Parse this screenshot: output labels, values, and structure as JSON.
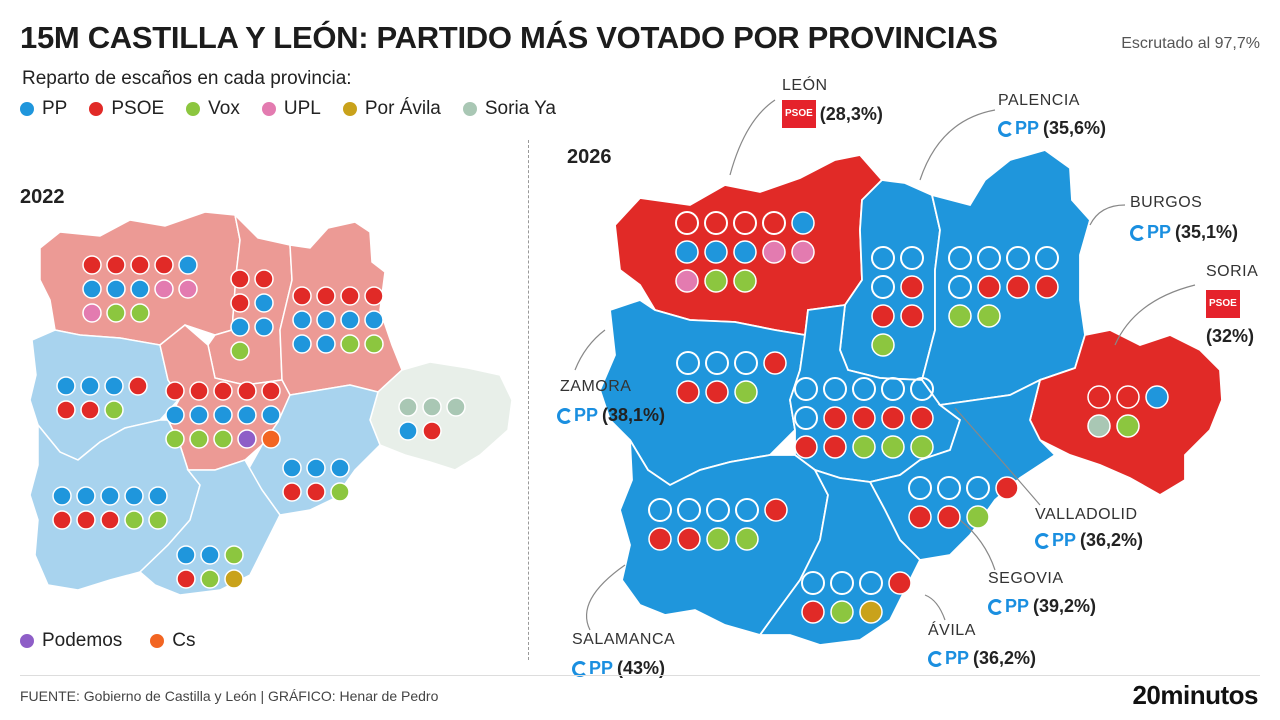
{
  "header": {
    "title": "15M CASTILLA Y LEÓN: PARTIDO MÁS VOTADO POR PROVINCIAS",
    "counted": "Escrutado al 97,7%",
    "subtitle": "Reparto de escaños en cada provincia:"
  },
  "legend": [
    {
      "label": "PP",
      "color": "#1f96dc"
    },
    {
      "label": "PSOE",
      "color": "#e12a27"
    },
    {
      "label": "Vox",
      "color": "#8cc63f"
    },
    {
      "label": "UPL",
      "color": "#e37bb0"
    },
    {
      "label": "Por Ávila",
      "color": "#c9a21b"
    },
    {
      "label": "Soria Ya",
      "color": "#a9c7b4"
    }
  ],
  "legend_extra": [
    {
      "label": "Podemos",
      "color": "#8e5ec7"
    },
    {
      "label": "Cs",
      "color": "#f26522"
    }
  ],
  "years": {
    "left": "2022",
    "right": "2026"
  },
  "colors": {
    "pp": "#1f96dc",
    "psoe": "#e12a27",
    "pp_light": "#a8d3ee",
    "psoe_light": "#ec9a95",
    "soria_light": "#e8efe9"
  },
  "results_2026": [
    {
      "province": "LEÓN",
      "party": "PSOE",
      "pct": "(28,3%)"
    },
    {
      "province": "PALENCIA",
      "party": "PP",
      "pct": "(35,6%)"
    },
    {
      "province": "BURGOS",
      "party": "PP",
      "pct": "(35,1%)"
    },
    {
      "province": "SORIA",
      "party": "PSOE",
      "pct": "(32%)"
    },
    {
      "province": "ZAMORA",
      "party": "PP",
      "pct": "(38,1%)"
    },
    {
      "province": "VALLADOLID",
      "party": "PP",
      "pct": "(36,2%)"
    },
    {
      "province": "SEGOVIA",
      "party": "PP",
      "pct": "(39,2%)"
    },
    {
      "province": "ÁVILA",
      "party": "PP",
      "pct": "(36,2%)"
    },
    {
      "province": "SALAMANCA",
      "party": "PP",
      "pct": "(43%)"
    }
  ],
  "logos": {
    "pp": "PP",
    "psoe": "PSOE"
  },
  "seats_2022": {
    "leon": [
      "PSOE",
      "PSOE",
      "PSOE",
      "PSOE",
      "PP",
      "PP",
      "PP",
      "PP",
      "UPL",
      "UPL",
      "UPL",
      "Vox",
      "Vox"
    ],
    "palencia": [
      "PSOE",
      "PSOE",
      "PSOE",
      "PP",
      "PP",
      "PP",
      "Vox"
    ],
    "burgos": [
      "PSOE",
      "PSOE",
      "PSOE",
      "PSOE",
      "PP",
      "PP",
      "PP",
      "PP",
      "PP",
      "PP",
      "Vox",
      "Vox"
    ],
    "zamora": [
      "PP",
      "PP",
      "PP",
      "PSOE",
      "PSOE",
      "PSOE",
      "Vox"
    ],
    "valladolid": [
      "PSOE",
      "PSOE",
      "PSOE",
      "PSOE",
      "PSOE",
      "PP",
      "PP",
      "PP",
      "PP",
      "PP",
      "Vox",
      "Vox",
      "Vox",
      "Podemos",
      "Cs"
    ],
    "soria": [
      "Soria Ya",
      "Soria Ya",
      "Soria Ya",
      "PP",
      "PSOE"
    ],
    "segovia": [
      "PP",
      "PP",
      "PP",
      "PSOE",
      "PSOE",
      "Vox"
    ],
    "salamanca": [
      "PP",
      "PP",
      "PP",
      "PP",
      "PP",
      "PSOE",
      "PSOE",
      "PSOE",
      "Vox",
      "Vox"
    ],
    "avila": [
      "PP",
      "PP",
      "Vox",
      "PSOE",
      "Vox",
      "Por Ávila"
    ]
  },
  "seats_2026": {
    "leon": [
      "Vacío",
      "Vacío",
      "Vacío",
      "Vacío",
      "PP",
      "PP",
      "PP",
      "PP",
      "UPL",
      "UPL",
      "UPL",
      "Vox",
      "Vox"
    ],
    "palencia": [
      "Vacío",
      "Vacío",
      "Vacío",
      "PSOE",
      "PSOE",
      "PSOE",
      "Vox"
    ],
    "burgos": [
      "Vacío",
      "Vacío",
      "Vacío",
      "Vacío",
      "Vacío",
      "PSOE",
      "PSOE",
      "PSOE",
      "Vox",
      "Vox"
    ],
    "zamora": [
      "Vacío",
      "Vacío",
      "Vacío",
      "PSOE",
      "PSOE",
      "PSOE",
      "Vox"
    ],
    "valladolid": [
      "Vacío",
      "Vacío",
      "Vacío",
      "Vacío",
      "Vacío",
      "Vacío",
      "PSOE",
      "PSOE",
      "PSOE",
      "PSOE",
      "PSOE",
      "PSOE",
      "Vox",
      "Vox",
      "Vox"
    ],
    "soria": [
      "PSOE",
      "PSOE",
      "PP",
      "Soria Ya",
      "Vox"
    ],
    "segovia": [
      "Vacío",
      "Vacío",
      "Vacío",
      "PSOE",
      "PSOE",
      "PSOE",
      "Vox"
    ],
    "salamanca": [
      "Vacío",
      "Vacío",
      "Vacío",
      "Vacío",
      "PSOE",
      "PSOE",
      "PSOE",
      "Vox",
      "Vox"
    ],
    "avila": [
      "Vacío",
      "Vacío",
      "Vacío",
      "PSOE",
      "PSOE",
      "Vox",
      "Por Ávila"
    ]
  },
  "footer": {
    "source": "FUENTE: Gobierno de Castilla y León  |  GRÁFICO: Henar de Pedro",
    "brand": "20minutos"
  }
}
